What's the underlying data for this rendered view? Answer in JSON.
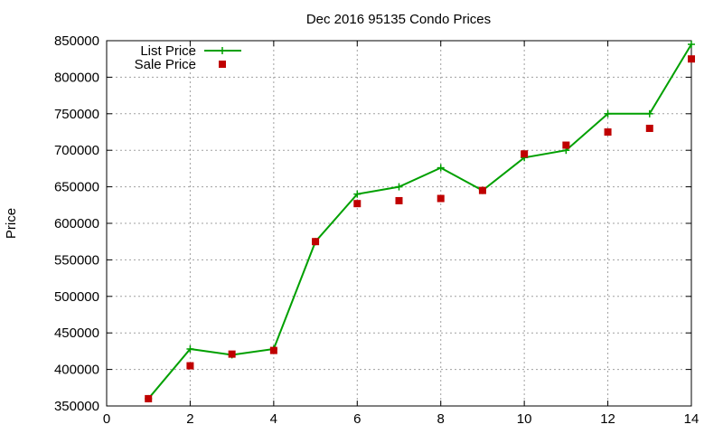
{
  "chart_data": {
    "type": "line",
    "title": "Dec 2016 95135 Condo Prices",
    "xlabel": "",
    "ylabel": "Price",
    "xlim": [
      0,
      14
    ],
    "ylim": [
      350000,
      850000
    ],
    "xticks": [
      0,
      2,
      4,
      6,
      8,
      10,
      12,
      14
    ],
    "yticks": [
      350000,
      400000,
      450000,
      500000,
      550000,
      600000,
      650000,
      700000,
      750000,
      800000,
      850000
    ],
    "grid": true,
    "legend_position": "top-left",
    "series": [
      {
        "name": "List Price",
        "style": "line-points",
        "color": "#00a000",
        "x": [
          1,
          2,
          3,
          4,
          5,
          6,
          7,
          8,
          9,
          10,
          11,
          12,
          13,
          14
        ],
        "y": [
          360000,
          428000,
          420000,
          428000,
          575000,
          640000,
          650000,
          676000,
          645000,
          690000,
          700000,
          750000,
          750000,
          845000
        ]
      },
      {
        "name": "Sale Price",
        "style": "points",
        "color": "#c00000",
        "x": [
          1,
          2,
          3,
          4,
          5,
          6,
          7,
          8,
          9,
          10,
          11,
          12,
          13,
          14
        ],
        "y": [
          360000,
          405000,
          421000,
          426000,
          575000,
          627000,
          631000,
          634000,
          645000,
          695000,
          707000,
          725000,
          730000,
          825000
        ]
      }
    ]
  }
}
